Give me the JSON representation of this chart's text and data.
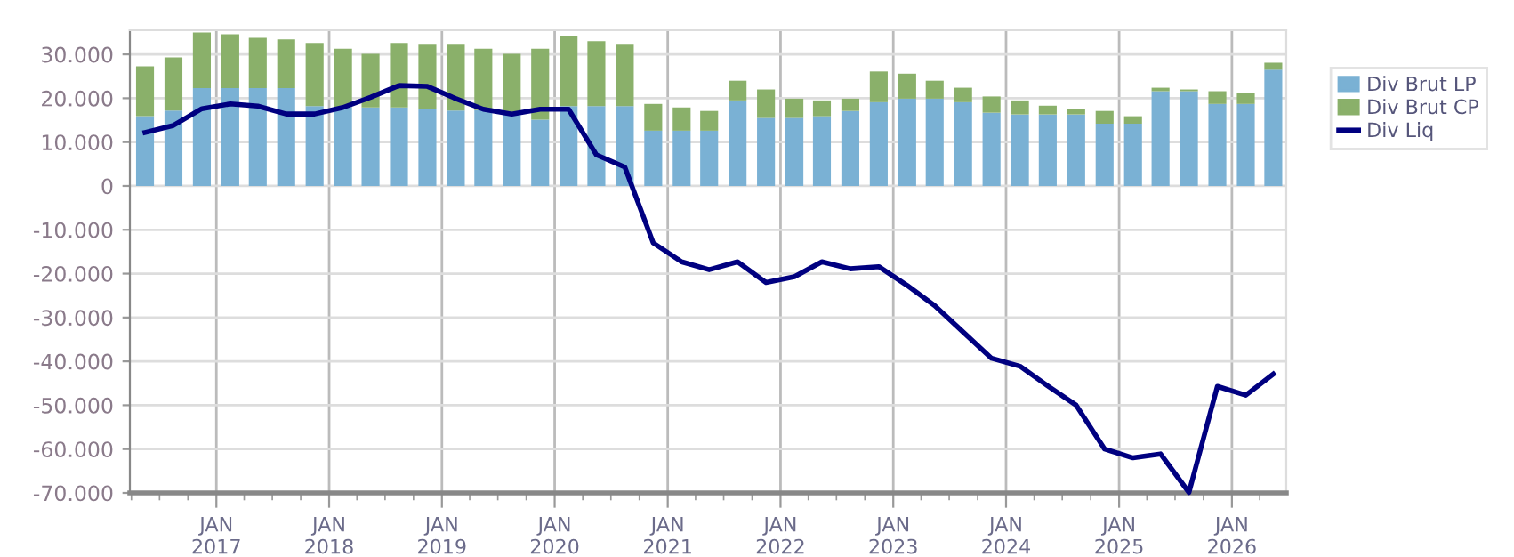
{
  "chart_data": {
    "type": "bar",
    "stacked": true,
    "x": [
      "2016-05-15",
      "2016-08-15",
      "2016-11-15",
      "2017-02-15",
      "2017-05-15",
      "2017-08-15",
      "2017-11-15",
      "2018-02-15",
      "2018-05-15",
      "2018-08-15",
      "2018-11-15",
      "2019-02-15",
      "2019-05-15",
      "2019-08-15",
      "2019-11-15",
      "2020-02-15",
      "2020-05-15",
      "2020-08-15",
      "2020-11-15",
      "2021-02-15",
      "2021-05-15",
      "2021-08-15",
      "2021-11-15",
      "2022-02-15",
      "2022-05-15",
      "2022-08-15",
      "2022-11-15",
      "2023-02-15",
      "2023-05-15",
      "2023-08-15",
      "2023-11-15",
      "2024-02-15",
      "2024-05-15",
      "2024-08-15",
      "2024-11-15",
      "2025-02-15",
      "2025-05-15",
      "2025-08-15",
      "2025-11-15",
      "2026-02-15",
      "2026-05-15"
    ],
    "series": [
      {
        "name": "Div Brut LP",
        "color": "#7ab1d4",
        "values": [
          15900,
          17200,
          22300,
          22300,
          22300,
          22300,
          18200,
          18000,
          17900,
          17900,
          17500,
          17200,
          17300,
          16500,
          15100,
          18200,
          18200,
          18200,
          12600,
          12600,
          12600,
          19500,
          15500,
          15500,
          15900,
          17100,
          19100,
          19900,
          19900,
          19100,
          16700,
          16300,
          16300,
          16300,
          14200,
          14200,
          21600,
          21600,
          18700,
          18700,
          26500
        ]
      },
      {
        "name": "Div Brut CP",
        "color": "#8ab06a",
        "values": [
          11400,
          12100,
          12700,
          12300,
          11500,
          11100,
          14400,
          13300,
          12200,
          14700,
          14700,
          15000,
          14000,
          13600,
          16200,
          16000,
          14800,
          14000,
          6100,
          5300,
          4500,
          4500,
          6500,
          4400,
          3600,
          2800,
          7000,
          5700,
          4100,
          3300,
          3700,
          3200,
          2000,
          1200,
          2900,
          1700,
          800,
          400,
          2900,
          2500,
          1600
        ]
      },
      {
        "name": "Div Liq",
        "type": "line",
        "color": "#000080",
        "values": [
          12200,
          13800,
          17600,
          18700,
          18200,
          16400,
          16400,
          17900,
          20200,
          22900,
          22700,
          19900,
          17500,
          16400,
          17500,
          17500,
          7100,
          4300,
          -13000,
          -17300,
          -19100,
          -17300,
          -22000,
          -20700,
          -17300,
          -18900,
          -18400,
          -22700,
          -27300,
          -33300,
          -39300,
          -41100,
          -45600,
          -50000,
          -60000,
          -62000,
          -61100,
          -69900,
          -45700,
          -47700,
          -42900
        ]
      }
    ],
    "xlim": [
      "2016-03-27",
      "2026-06-26"
    ],
    "xticks": [
      {
        "value": "2017-01-01",
        "label": "JAN\n2017"
      },
      {
        "value": "2018-01-01",
        "label": "JAN\n2018"
      },
      {
        "value": "2019-01-01",
        "label": "JAN\n2019"
      },
      {
        "value": "2020-01-01",
        "label": "JAN\n2020"
      },
      {
        "value": "2021-01-01",
        "label": "JAN\n2021"
      },
      {
        "value": "2022-01-01",
        "label": "JAN\n2022"
      },
      {
        "value": "2023-01-01",
        "label": "JAN\n2023"
      },
      {
        "value": "2024-01-01",
        "label": "JAN\n2024"
      },
      {
        "value": "2025-01-01",
        "label": "JAN\n2025"
      },
      {
        "value": "2026-01-01",
        "label": "JAN\n2026"
      }
    ],
    "ylim": [
      -70000,
      35500
    ],
    "yticks": [
      {
        "value": -70000,
        "label": "-70.000"
      },
      {
        "value": -60000,
        "label": "-60.000"
      },
      {
        "value": -50000,
        "label": "-50.000"
      },
      {
        "value": -40000,
        "label": "-40.000"
      },
      {
        "value": -30000,
        "label": "-30.000"
      },
      {
        "value": -20000,
        "label": "-20.000"
      },
      {
        "value": -10000,
        "label": "-10.000"
      },
      {
        "value": 0,
        "label": "0"
      },
      {
        "value": 10000,
        "label": "10.000"
      },
      {
        "value": 20000,
        "label": "20.000"
      },
      {
        "value": 30000,
        "label": "30.000"
      }
    ],
    "grid": true,
    "legend": "right"
  }
}
